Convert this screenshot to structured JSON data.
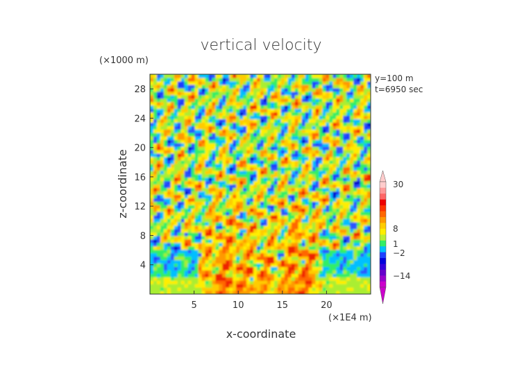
{
  "chart_data": {
    "type": "heatmap",
    "title": "vertical velocity",
    "xlabel": "x-coordinate",
    "ylabel": "z-coordinate",
    "x_unit": "(×1E4 m)",
    "y_unit": "(×1000 m)",
    "xlim": [
      0,
      25
    ],
    "ylim": [
      0,
      30
    ],
    "x_ticks": [
      5,
      10,
      15,
      20
    ],
    "y_ticks": [
      4,
      8,
      12,
      16,
      20,
      24,
      28
    ],
    "annotations": [
      "y=100 m",
      "t=6950 sec"
    ],
    "colorbar": {
      "levels": [
        -14,
        -2,
        1,
        8,
        30
      ],
      "labels": [
        "30",
        "8",
        "1",
        "−2",
        "−14"
      ],
      "colors": [
        "#cc00cc",
        "#9900cc",
        "#6600cc",
        "#3300dd",
        "#0000dd",
        "#1e40ff",
        "#00c0ff",
        "#33ee66",
        "#bbee33",
        "#ffee00",
        "#ffcc00",
        "#ff9900",
        "#ff6600",
        "#ff3300",
        "#ee0000",
        "#ff6666",
        "#ff9999",
        "#ffcccc"
      ],
      "extend": "both"
    },
    "field_description_visible": "Background near-zero (green) at low levels; warm upward plumes centered near x≈7-10 and x≈15-19 below z≈12; mixed blue/yellow/orange turbulent cells above z≈8"
  }
}
